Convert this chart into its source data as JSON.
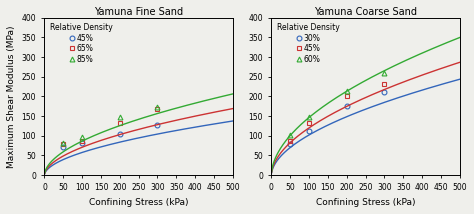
{
  "fine_sand": {
    "title": "Yamuna Fine Sand",
    "xlabel": "Confining Stress (kPa)",
    "ylabel": "Maximum Shear Modulus (MPa)",
    "ylim": [
      0,
      400
    ],
    "xlim": [
      0,
      500
    ],
    "yticks": [
      0,
      50,
      100,
      150,
      200,
      250,
      300,
      350,
      400
    ],
    "xticks": [
      0,
      50,
      100,
      150,
      200,
      250,
      300,
      350,
      400,
      450,
      500
    ],
    "series": [
      {
        "label": "45%",
        "color": "#3366bb",
        "marker": "o",
        "data_x": [
          50,
          100,
          200,
          300
        ],
        "data_y": [
          72,
          82,
          104,
          127
        ],
        "fit_coeff": 4.8,
        "fit_exp": 0.54
      },
      {
        "label": "65%",
        "color": "#cc3333",
        "marker": "s",
        "data_x": [
          50,
          100,
          200,
          300
        ],
        "data_y": [
          78,
          88,
          132,
          168
        ],
        "fit_coeff": 5.9,
        "fit_exp": 0.54
      },
      {
        "label": "85%",
        "color": "#33aa33",
        "marker": "^",
        "data_x": [
          50,
          100,
          200,
          300
        ],
        "data_y": [
          82,
          97,
          148,
          172
        ],
        "fit_coeff": 7.2,
        "fit_exp": 0.54
      }
    ],
    "legend_title": "Relative Density"
  },
  "coarse_sand": {
    "title": "Yamuna Coarse Sand",
    "xlabel": "Confining Stress (kPa)",
    "ylabel": "Maximum Shear Modulus (MPa)",
    "ylim": [
      0,
      400
    ],
    "xlim": [
      0,
      500
    ],
    "yticks": [
      0,
      50,
      100,
      150,
      200,
      250,
      300,
      350,
      400
    ],
    "xticks": [
      0,
      50,
      100,
      150,
      200,
      250,
      300,
      350,
      400,
      450,
      500
    ],
    "series": [
      {
        "label": "30%",
        "color": "#3366bb",
        "marker": "o",
        "data_x": [
          50,
          100,
          200,
          300
        ],
        "data_y": [
          80,
          112,
          175,
          212
        ],
        "fit_coeff": 8.5,
        "fit_exp": 0.54
      },
      {
        "label": "45%",
        "color": "#cc3333",
        "marker": "s",
        "data_x": [
          50,
          100,
          200,
          300
        ],
        "data_y": [
          88,
          132,
          202,
          232
        ],
        "fit_coeff": 10.0,
        "fit_exp": 0.54
      },
      {
        "label": "60%",
        "color": "#33aa33",
        "marker": "^",
        "data_x": [
          50,
          100,
          200,
          300
        ],
        "data_y": [
          102,
          148,
          215,
          260
        ],
        "fit_coeff": 12.2,
        "fit_exp": 0.54
      }
    ],
    "legend_title": "Relative Density"
  },
  "background_color": "#efefeb",
  "font_size": 7.0
}
